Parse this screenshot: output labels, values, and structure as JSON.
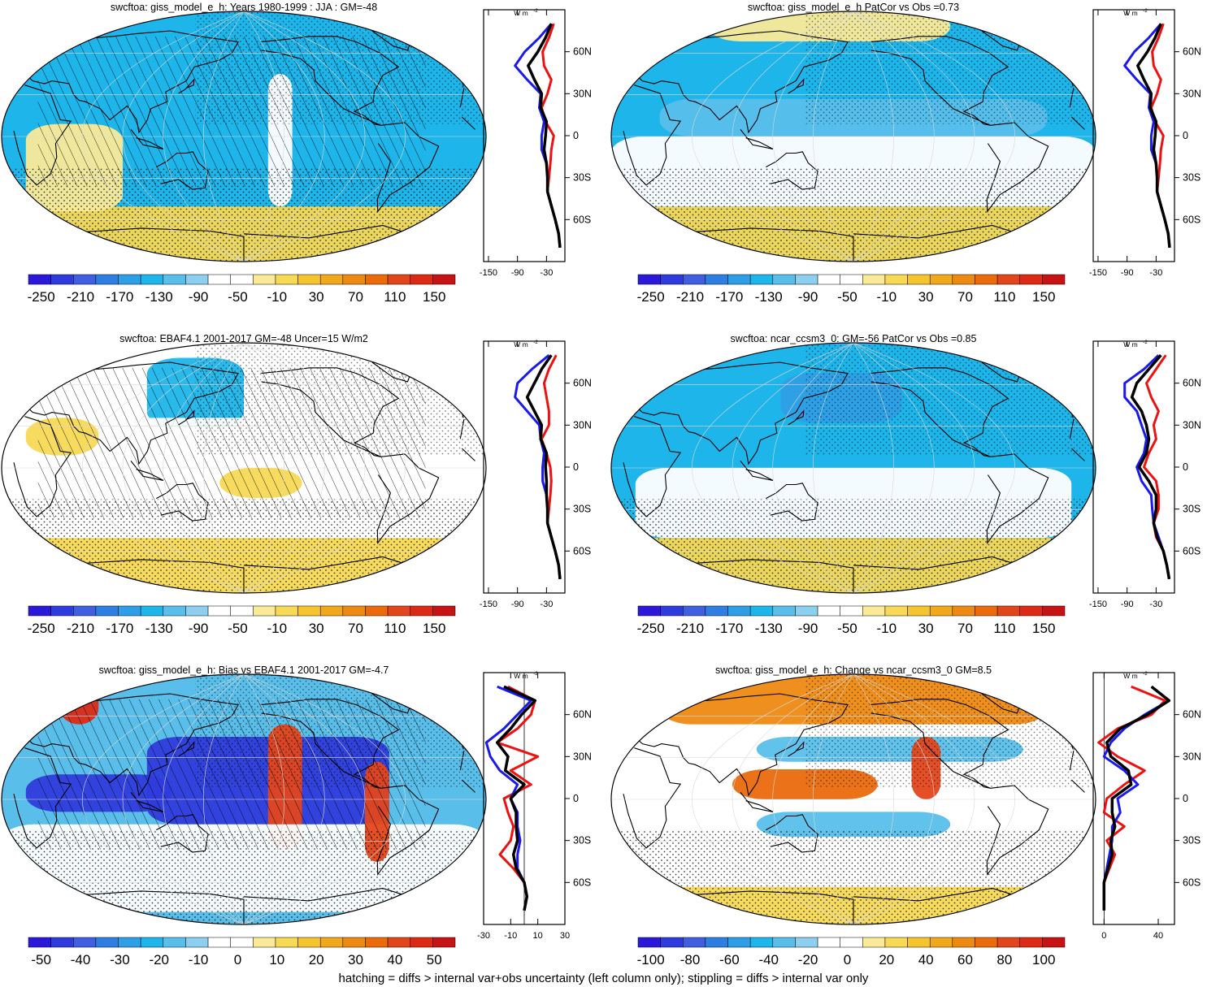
{
  "chart_data": [
    {
      "type": "heatmap",
      "title": "swcftoa: giss_model_e_h: Years 1980-1999 : JJA : GM=-48",
      "colorbar": {
        "labels": [
          "-250",
          "-210",
          "-170",
          "-130",
          "-90",
          "-50",
          "-10",
          "30",
          "70",
          "110",
          "150"
        ],
        "range": [
          -270,
          170
        ]
      },
      "profile": {
        "x_ticks": [
          "-150",
          "-90",
          "-30"
        ],
        "x_range": [
          -160,
          8
        ],
        "y_ticks": [
          "60N",
          "30N",
          "0",
          "30S",
          "60S"
        ],
        "units": "W m",
        "units_exp": "-2",
        "lat": [
          80,
          70,
          60,
          50,
          40,
          30,
          20,
          10,
          0,
          -10,
          -20,
          -30,
          -40,
          -50,
          -60,
          -70,
          -80
        ],
        "blue": [
          -20,
          -45,
          -75,
          -95,
          -70,
          -42,
          -45,
          -35,
          -40,
          -40,
          -30,
          -28,
          -28,
          -20,
          -12,
          -5,
          -2
        ],
        "red": [
          -15,
          -25,
          -38,
          -35,
          -20,
          -28,
          -40,
          -32,
          -15,
          -20,
          -22,
          -25,
          -28,
          -20,
          -12,
          -5,
          -2
        ],
        "black": [
          -20,
          -32,
          -48,
          -68,
          -55,
          -40,
          -42,
          -30,
          -32,
          -35,
          -30,
          -28,
          -28,
          -20,
          -12,
          -5,
          -2
        ]
      }
    },
    {
      "type": "heatmap",
      "title": "swcftoa: giss_model_e_h PatCor vs Obs =0.73",
      "colorbar": {
        "labels": [
          "-250",
          "-210",
          "-170",
          "-130",
          "-90",
          "-50",
          "-10",
          "30",
          "70",
          "110",
          "150"
        ],
        "range": [
          -270,
          170
        ]
      },
      "profile": {
        "x_ticks": [
          "-150",
          "-90",
          "-30"
        ],
        "x_range": [
          -160,
          8
        ],
        "y_ticks": [
          "60N",
          "30N",
          "0",
          "30S",
          "60S"
        ],
        "units": "W m",
        "units_exp": "-2",
        "lat": [
          80,
          70,
          60,
          50,
          40,
          30,
          20,
          10,
          0,
          -10,
          -20,
          -30,
          -40,
          -50,
          -60,
          -70,
          -80
        ],
        "blue": [
          -20,
          -45,
          -75,
          -95,
          -70,
          -42,
          -45,
          -35,
          -40,
          -40,
          -30,
          -28,
          -28,
          -20,
          -12,
          -5,
          -2
        ],
        "red": [
          -15,
          -25,
          -38,
          -35,
          -20,
          -28,
          -40,
          -32,
          -15,
          -20,
          -22,
          -25,
          -28,
          -20,
          -12,
          -5,
          -2
        ],
        "black": [
          -20,
          -32,
          -48,
          -68,
          -55,
          -40,
          -42,
          -30,
          -32,
          -35,
          -30,
          -28,
          -28,
          -20,
          -12,
          -5,
          -2
        ]
      }
    },
    {
      "type": "heatmap",
      "title": "swcftoa: EBAF4.1 2001-2017 GM=-48 Uncer=15 W/m2",
      "colorbar": {
        "labels": [
          "-250",
          "-210",
          "-170",
          "-130",
          "-90",
          "-50",
          "-10",
          "30",
          "70",
          "110",
          "150"
        ],
        "range": [
          -270,
          170
        ]
      },
      "profile": {
        "x_ticks": [
          "-150",
          "-90",
          "-30"
        ],
        "x_range": [
          -160,
          8
        ],
        "y_ticks": [
          "60N",
          "30N",
          "0",
          "30S",
          "60S"
        ],
        "units": "W m",
        "units_exp": "-2",
        "lat": [
          80,
          70,
          60,
          50,
          40,
          30,
          20,
          10,
          0,
          -10,
          -20,
          -30,
          -40,
          -50,
          -60,
          -70,
          -80
        ],
        "blue": [
          -25,
          -60,
          -90,
          -95,
          -70,
          -45,
          -42,
          -35,
          -38,
          -38,
          -30,
          -28,
          -28,
          -20,
          -12,
          -5,
          -2
        ],
        "red": [
          -10,
          -25,
          -35,
          -30,
          -25,
          -25,
          -40,
          -30,
          -22,
          -20,
          -22,
          -25,
          -28,
          -20,
          -12,
          -5,
          -2
        ],
        "black": [
          -20,
          -40,
          -55,
          -70,
          -55,
          -40,
          -42,
          -30,
          -32,
          -30,
          -30,
          -28,
          -28,
          -20,
          -12,
          -5,
          -2
        ]
      }
    },
    {
      "type": "heatmap",
      "title": "swcftoa: ncar_ccsm3_0: GM=-56 PatCor vs Obs =0.85",
      "colorbar": {
        "labels": [
          "-250",
          "-210",
          "-170",
          "-130",
          "-90",
          "-50",
          "-10",
          "30",
          "70",
          "110",
          "150"
        ],
        "range": [
          -270,
          170
        ]
      },
      "profile": {
        "x_ticks": [
          "-150",
          "-90",
          "-30"
        ],
        "x_range": [
          -160,
          8
        ],
        "y_ticks": [
          "60N",
          "30N",
          "0",
          "30S",
          "60S"
        ],
        "units": "W m",
        "units_exp": "-2",
        "lat": [
          80,
          70,
          60,
          50,
          40,
          30,
          20,
          10,
          0,
          -10,
          -20,
          -30,
          -40,
          -50,
          -60,
          -70,
          -80
        ],
        "blue": [
          -25,
          -55,
          -95,
          -95,
          -70,
          -60,
          -50,
          -55,
          -70,
          -60,
          -40,
          -38,
          -35,
          -25,
          -15,
          -8,
          -3
        ],
        "red": [
          -10,
          -30,
          -50,
          -40,
          -25,
          -35,
          -30,
          -45,
          -55,
          -30,
          -25,
          -25,
          -35,
          -30,
          -15,
          -8,
          -3
        ],
        "black": [
          -20,
          -45,
          -70,
          -80,
          -60,
          -50,
          -45,
          -50,
          -65,
          -45,
          -30,
          -30,
          -35,
          -28,
          -15,
          -8,
          -3
        ]
      }
    },
    {
      "type": "heatmap",
      "title": "swcftoa: giss_model_e_h: Bias vs EBAF4.1 2001-2017 GM=-4.7",
      "colorbar": {
        "labels": [
          "-50",
          "-40",
          "-30",
          "-20",
          "-10",
          "0",
          "10",
          "20",
          "30",
          "40",
          "50"
        ],
        "range": [
          -55,
          55
        ]
      },
      "profile": {
        "x_ticks": [
          "-30",
          "-10",
          "10",
          "30"
        ],
        "x_range": [
          -30,
          30
        ],
        "y_ticks": [
          "60N",
          "30N",
          "0",
          "30S",
          "60S"
        ],
        "units": "W m",
        "units_exp": "-2",
        "lat": [
          80,
          70,
          60,
          50,
          40,
          30,
          20,
          10,
          0,
          -10,
          -20,
          -30,
          -40,
          -50,
          -60,
          -70,
          -80
        ],
        "blue": [
          -20,
          5,
          -5,
          -15,
          -28,
          -25,
          -18,
          -5,
          -10,
          -5,
          -5,
          -3,
          -5,
          -5,
          0,
          2,
          0
        ],
        "red": [
          -12,
          8,
          5,
          -5,
          -20,
          10,
          -10,
          5,
          -15,
          -12,
          -8,
          -10,
          -18,
          -8,
          0,
          2,
          0
        ],
        "black": [
          -15,
          8,
          -2,
          -10,
          -20,
          -12,
          -14,
          0,
          -10,
          -6,
          -6,
          -5,
          -8,
          -6,
          0,
          2,
          0
        ]
      }
    },
    {
      "type": "heatmap",
      "title": "swcftoa: giss_model_e_h: Change vs ncar_ccsm3_0 GM=8.5",
      "colorbar": {
        "labels": [
          "-100",
          "-80",
          "-60",
          "-40",
          "-20",
          "0",
          "20",
          "40",
          "60",
          "80",
          "100"
        ],
        "range": [
          -110,
          110
        ]
      },
      "profile": {
        "x_ticks": [
          "0",
          "40"
        ],
        "x_range": [
          -8,
          52
        ],
        "y_ticks": [
          "60N",
          "30N",
          "0",
          "30S",
          "60S"
        ],
        "units": "W m",
        "units_exp": "-2",
        "lat": [
          80,
          70,
          60,
          50,
          40,
          30,
          20,
          10,
          0,
          -10,
          -20,
          -30,
          -40,
          -50,
          -60,
          -70,
          -80
        ],
        "blue": [
          35,
          48,
          30,
          15,
          5,
          0,
          15,
          25,
          10,
          12,
          6,
          6,
          4,
          2,
          0,
          0,
          0
        ],
        "red": [
          20,
          45,
          35,
          10,
          -4,
          10,
          30,
          15,
          2,
          0,
          15,
          2,
          8,
          4,
          0,
          0,
          0
        ],
        "black": [
          35,
          48,
          32,
          12,
          2,
          5,
          18,
          20,
          6,
          6,
          8,
          5,
          6,
          3,
          0,
          0,
          0
        ]
      }
    }
  ],
  "footer_note": "hatching = diffs > internal var+obs uncertainty (left column only); stippling = diffs > internal var only"
}
